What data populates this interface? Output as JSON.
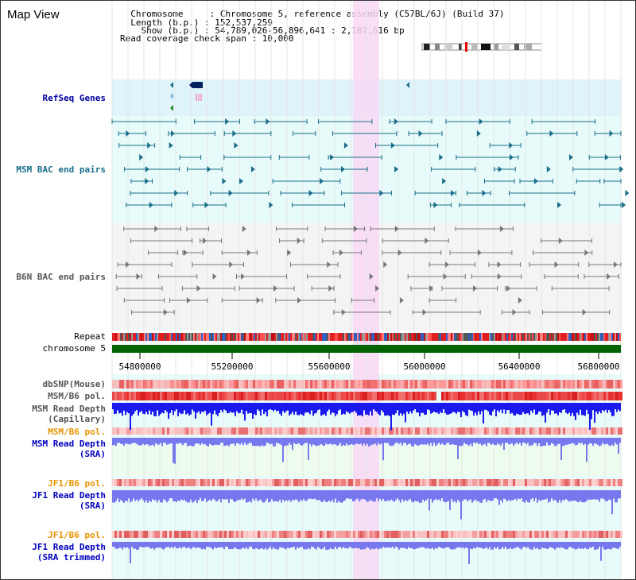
{
  "header": {
    "title": "Map View",
    "info_lines": [
      "  Chromosome     : Chromosome 5, reference assembly (C57BL/6J) (Build 37)",
      "  Length (b.p.) : 152,537,259",
      "    Show (b.p.) : 54,789,026-56,896,641 : 2,107,616 bp",
      "Read coverage check span : 10,000"
    ]
  },
  "tracks": {
    "refseq": "RefSeq Genes",
    "msm_bac": "MSM BAC end pairs",
    "b6n_bac": "B6N BAC end pairs",
    "repeat": "Repeat",
    "chromosome": "chromosome 5",
    "dbsnp": "dbSNP(Mouse)",
    "msm_b6_pol": "MSM/B6 pol.",
    "msm_depth_cap_1": "MSM Read Depth",
    "msm_depth_cap_2": "(Capillary)",
    "msm_b6_pol_2": "MSM/B6 pol.",
    "msm_depth_sra_1": "MSM Read Depth",
    "msm_depth_sra_2": "(SRA)",
    "jf1_b6_pol": "JF1/B6 pol.",
    "jf1_depth_sra_1": "JF1 Read Depth",
    "jf1_depth_sra_2": "(SRA)",
    "jf1_b6_pol_2": "JF1/B6 pol.",
    "jf1_depth_trim_1": "JF1 Read Depth",
    "jf1_depth_trim_2": "(SRA trimmed)"
  },
  "axis": {
    "ticks": [
      "54800000",
      "55200000",
      "55600000",
      "56000000",
      "56400000",
      "56800000"
    ]
  },
  "colors": {
    "gene_track_bg": "#dff3fb",
    "msm_bg": "#e8fbfb",
    "b6n_bg": "#f4f4f4",
    "highlight": "#f8d8f4",
    "chromosome": "#006400",
    "msm_arrow": "#1a6e8a",
    "b6n_arrow": "#777777",
    "depth_dark": "#1a1aee",
    "depth_light": "#7878ee"
  }
}
